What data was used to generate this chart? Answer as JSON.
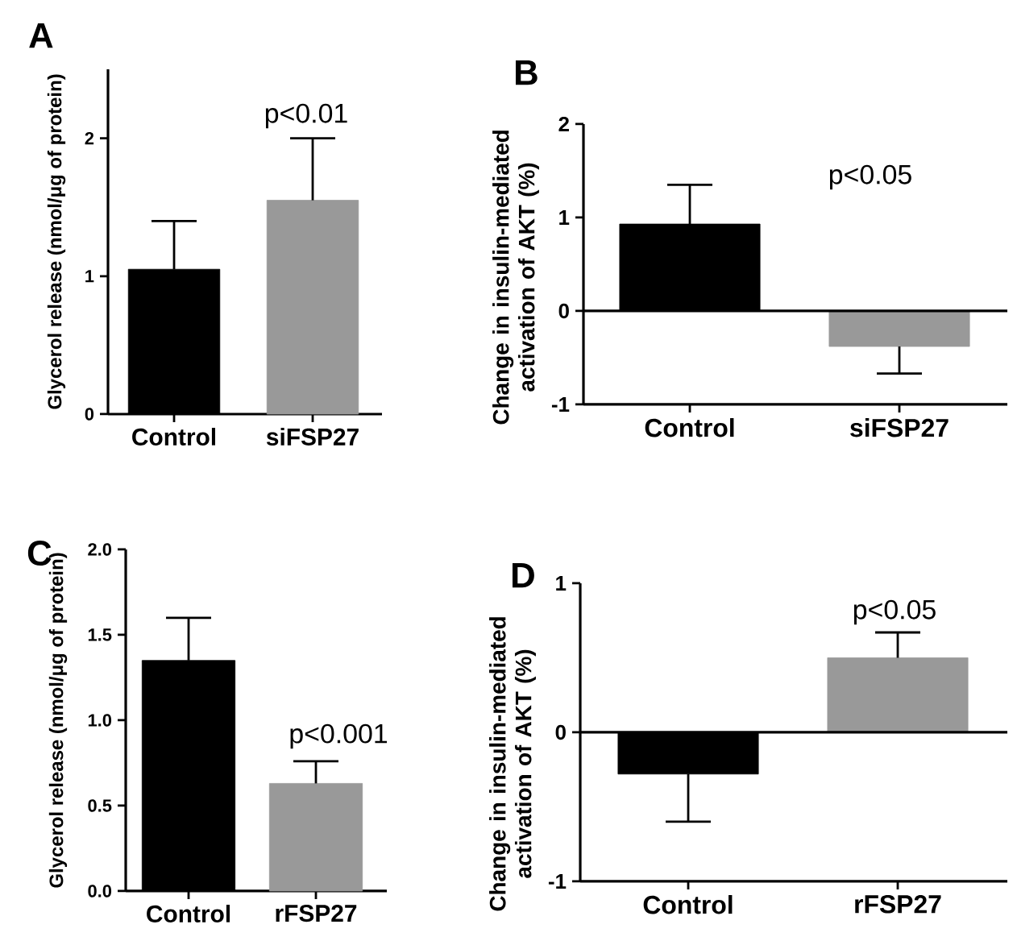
{
  "chart_data": [
    {
      "type": "bar",
      "title": "A",
      "ylabel": "Glycerol release (nmol/μg of protein)",
      "categories": [
        "Control",
        "siFSP27"
      ],
      "values": [
        1.05,
        1.55
      ],
      "colors": [
        "#000000",
        "#999999"
      ],
      "errors": [
        [
          1.05,
          1.4
        ],
        [
          1.55,
          2.0
        ]
      ],
      "ylim": [
        0,
        2.5
      ],
      "yticks": [
        0,
        1,
        2
      ],
      "annotations": [
        "p<0.01"
      ]
    },
    {
      "type": "bar",
      "title": "B",
      "ylabel": "Change in insulin-mediated activation of AKT (%)",
      "categories": [
        "Control",
        "siFSP27"
      ],
      "values": [
        0.93,
        -0.38
      ],
      "colors": [
        "#000000",
        "#999999"
      ],
      "errors": [
        [
          0.93,
          1.35
        ],
        [
          -0.67,
          -0.38
        ]
      ],
      "ylim": [
        -1,
        2
      ],
      "yticks": [
        -1,
        0,
        1,
        2
      ],
      "ref_lines": [
        {
          "axis": "y",
          "value": 0
        }
      ],
      "annotations": [
        "p<0.05"
      ]
    },
    {
      "type": "bar",
      "title": "C",
      "ylabel": "Glycerol release (nmol/μg of protein)",
      "categories": [
        "Control",
        "rFSP27"
      ],
      "values": [
        1.35,
        0.63
      ],
      "colors": [
        "#000000",
        "#999999"
      ],
      "errors": [
        [
          1.35,
          1.6
        ],
        [
          0.63,
          0.76
        ]
      ],
      "ylim": [
        0,
        2
      ],
      "yticks": [
        {
          "value": 0,
          "label": "0.0"
        },
        {
          "value": 0.5,
          "label": "0.5"
        },
        {
          "value": 1,
          "label": "1.0"
        },
        {
          "value": 1.5,
          "label": "1.5"
        },
        {
          "value": 2,
          "label": "2.0"
        }
      ],
      "annotations": [
        "p<0.001"
      ]
    },
    {
      "type": "bar",
      "title": "D",
      "ylabel": "Change in insulin-mediated activation of AKT (%)",
      "categories": [
        "Control",
        "rFSP27"
      ],
      "values": [
        -0.28,
        0.5
      ],
      "colors": [
        "#000000",
        "#999999"
      ],
      "errors": [
        [
          -0.6,
          -0.28
        ],
        [
          0.5,
          0.67
        ]
      ],
      "ylim": [
        -1,
        1
      ],
      "yticks": [
        -1,
        0,
        1
      ],
      "ref_lines": [
        {
          "axis": "y",
          "value": 0
        }
      ],
      "annotations": [
        "p<0.05"
      ]
    }
  ]
}
